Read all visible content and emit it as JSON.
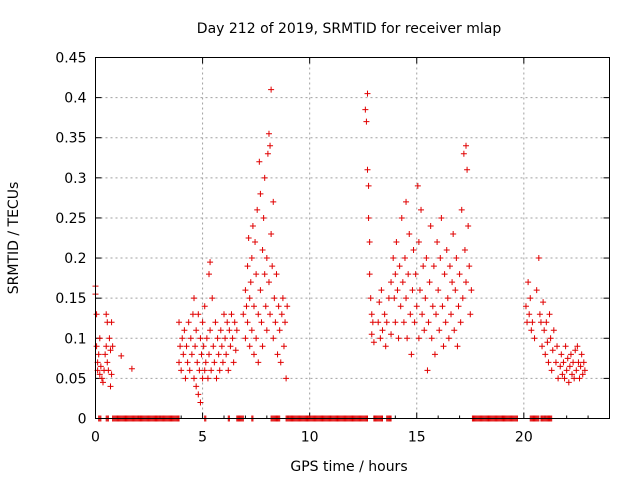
{
  "chart_data": {
    "type": "scatter",
    "title": "Day 212 of 2019, SRMTID for receiver mlap",
    "xlabel": "GPS time / hours",
    "ylabel": "SRMTID / TECUs",
    "xlim": [
      0,
      24
    ],
    "ylim": [
      0,
      0.45
    ],
    "xticks": [
      0,
      5,
      10,
      15,
      20
    ],
    "xtick_labels": [
      "0",
      "5",
      "10",
      "15",
      "20"
    ],
    "yticks": [
      0,
      0.05,
      0.1,
      0.15,
      0.2,
      0.25,
      0.3,
      0.35,
      0.4,
      0.45
    ],
    "ytick_labels": [
      "0",
      "0.05",
      "0.1",
      "0.15",
      "0.2",
      "0.25",
      "0.3",
      "0.35",
      "0.4",
      "0.45"
    ],
    "grid": true,
    "marker": "+",
    "marker_color": "#e00000",
    "series": [
      {
        "name": "SRMTID",
        "points": [
          [
            0.0,
            0.165
          ],
          [
            0.0,
            0.155
          ],
          [
            0.05,
            0.13
          ],
          [
            0.05,
            0.09
          ],
          [
            0.1,
            0.07
          ],
          [
            0.1,
            0.06
          ],
          [
            0.15,
            0.08
          ],
          [
            0.2,
            0.055
          ],
          [
            0.2,
            0.1
          ],
          [
            0.25,
            0.065
          ],
          [
            0.3,
            0.05
          ],
          [
            0.35,
            0.045
          ],
          [
            0.4,
            0.06
          ],
          [
            0.45,
            0.08
          ],
          [
            0.5,
            0.09
          ],
          [
            0.5,
            0.13
          ],
          [
            0.55,
            0.12
          ],
          [
            0.55,
            0.07
          ],
          [
            0.6,
            0.06
          ],
          [
            0.65,
            0.1
          ],
          [
            0.7,
            0.085
          ],
          [
            0.7,
            0.04
          ],
          [
            0.75,
            0.12
          ],
          [
            0.75,
            0.055
          ],
          [
            0.8,
            0.09
          ],
          [
            1.2,
            0.078
          ],
          [
            1.7,
            0.062
          ],
          [
            3.9,
            0.12
          ],
          [
            3.9,
            0.07
          ],
          [
            3.95,
            0.09
          ],
          [
            4.0,
            0.06
          ],
          [
            4.05,
            0.1
          ],
          [
            4.1,
            0.08
          ],
          [
            4.15,
            0.11
          ],
          [
            4.2,
            0.05
          ],
          [
            4.25,
            0.09
          ],
          [
            4.3,
            0.07
          ],
          [
            4.35,
            0.12
          ],
          [
            4.4,
            0.06
          ],
          [
            4.45,
            0.1
          ],
          [
            4.5,
            0.08
          ],
          [
            4.55,
            0.13
          ],
          [
            4.6,
            0.05
          ],
          [
            4.6,
            0.15
          ],
          [
            4.65,
            0.09
          ],
          [
            4.7,
            0.04
          ],
          [
            4.7,
            0.11
          ],
          [
            4.75,
            0.07
          ],
          [
            4.8,
            0.03
          ],
          [
            4.8,
            0.13
          ],
          [
            4.85,
            0.06
          ],
          [
            4.9,
            0.1
          ],
          [
            4.9,
            0.02
          ],
          [
            4.95,
            0.08
          ],
          [
            5.0,
            0.05
          ],
          [
            5.0,
            0.12
          ],
          [
            5.05,
            0.09
          ],
          [
            5.1,
            0.06
          ],
          [
            5.1,
            0.14
          ],
          [
            5.15,
            0.07
          ],
          [
            5.2,
            0.1
          ],
          [
            5.25,
            0.05
          ],
          [
            5.3,
            0.18
          ],
          [
            5.3,
            0.08
          ],
          [
            5.35,
            0.195
          ],
          [
            5.35,
            0.11
          ],
          [
            5.4,
            0.06
          ],
          [
            5.45,
            0.15
          ],
          [
            5.5,
            0.09
          ],
          [
            5.55,
            0.07
          ],
          [
            5.6,
            0.12
          ],
          [
            5.65,
            0.05
          ],
          [
            5.7,
            0.1
          ],
          [
            5.75,
            0.08
          ],
          [
            5.8,
            0.06
          ],
          [
            5.85,
            0.11
          ],
          [
            5.9,
            0.09
          ],
          [
            5.95,
            0.07
          ],
          [
            6.0,
            0.13
          ],
          [
            6.05,
            0.1
          ],
          [
            6.1,
            0.08
          ],
          [
            6.15,
            0.12
          ],
          [
            6.2,
            0.06
          ],
          [
            6.25,
            0.11
          ],
          [
            6.3,
            0.09
          ],
          [
            6.35,
            0.13
          ],
          [
            6.4,
            0.1
          ],
          [
            6.45,
            0.07
          ],
          [
            6.5,
            0.12
          ],
          [
            6.55,
            0.085
          ],
          [
            6.6,
            0.11
          ],
          [
            6.9,
            0.13
          ],
          [
            7.0,
            0.16
          ],
          [
            7.0,
            0.1
          ],
          [
            7.05,
            0.14
          ],
          [
            7.1,
            0.19
          ],
          [
            7.1,
            0.12
          ],
          [
            7.15,
            0.225
          ],
          [
            7.2,
            0.15
          ],
          [
            7.2,
            0.09
          ],
          [
            7.25,
            0.17
          ],
          [
            7.3,
            0.2
          ],
          [
            7.3,
            0.11
          ],
          [
            7.35,
            0.24
          ],
          [
            7.4,
            0.14
          ],
          [
            7.4,
            0.08
          ],
          [
            7.45,
            0.22
          ],
          [
            7.5,
            0.18
          ],
          [
            7.5,
            0.1
          ],
          [
            7.55,
            0.26
          ],
          [
            7.6,
            0.13
          ],
          [
            7.6,
            0.07
          ],
          [
            7.65,
            0.32
          ],
          [
            7.7,
            0.16
          ],
          [
            7.7,
            0.28
          ],
          [
            7.75,
            0.12
          ],
          [
            7.8,
            0.21
          ],
          [
            7.8,
            0.09
          ],
          [
            7.85,
            0.25
          ],
          [
            7.9,
            0.18
          ],
          [
            7.9,
            0.3
          ],
          [
            7.95,
            0.14
          ],
          [
            8.0,
            0.2
          ],
          [
            8.0,
            0.11
          ],
          [
            8.05,
            0.33
          ],
          [
            8.1,
            0.355
          ],
          [
            8.1,
            0.17
          ],
          [
            8.15,
            0.34
          ],
          [
            8.15,
            0.13
          ],
          [
            8.2,
            0.41
          ],
          [
            8.2,
            0.23
          ],
          [
            8.25,
            0.19
          ],
          [
            8.3,
            0.27
          ],
          [
            8.3,
            0.1
          ],
          [
            8.35,
            0.15
          ],
          [
            8.4,
            0.12
          ],
          [
            8.45,
            0.18
          ],
          [
            8.5,
            0.08
          ],
          [
            8.55,
            0.14
          ],
          [
            8.6,
            0.11
          ],
          [
            8.65,
            0.07
          ],
          [
            8.7,
            0.13
          ],
          [
            8.75,
            0.15
          ],
          [
            8.8,
            0.09
          ],
          [
            8.85,
            0.12
          ],
          [
            8.9,
            0.05
          ],
          [
            8.95,
            0.14
          ],
          [
            12.6,
            0.385
          ],
          [
            12.65,
            0.37
          ],
          [
            12.7,
            0.405
          ],
          [
            12.7,
            0.31
          ],
          [
            12.75,
            0.29
          ],
          [
            12.75,
            0.25
          ],
          [
            12.8,
            0.22
          ],
          [
            12.8,
            0.18
          ],
          [
            12.85,
            0.15
          ],
          [
            12.9,
            0.13
          ],
          [
            12.9,
            0.105
          ],
          [
            12.95,
            0.12
          ],
          [
            13.0,
            0.095
          ],
          [
            13.2,
            0.12
          ],
          [
            13.25,
            0.145
          ],
          [
            13.3,
            0.1
          ],
          [
            13.35,
            0.16
          ],
          [
            13.4,
            0.11
          ],
          [
            13.5,
            0.13
          ],
          [
            13.55,
            0.09
          ],
          [
            13.6,
            0.12
          ],
          [
            13.7,
            0.15
          ],
          [
            13.8,
            0.17
          ],
          [
            13.8,
            0.105
          ],
          [
            13.9,
            0.2
          ],
          [
            13.95,
            0.15
          ],
          [
            14.0,
            0.18
          ],
          [
            14.0,
            0.12
          ],
          [
            14.05,
            0.22
          ],
          [
            14.1,
            0.16
          ],
          [
            14.15,
            0.1
          ],
          [
            14.2,
            0.19
          ],
          [
            14.25,
            0.14
          ],
          [
            14.3,
            0.25
          ],
          [
            14.35,
            0.17
          ],
          [
            14.4,
            0.12
          ],
          [
            14.45,
            0.2
          ],
          [
            14.5,
            0.27
          ],
          [
            14.5,
            0.15
          ],
          [
            14.55,
            0.1
          ],
          [
            14.6,
            0.18
          ],
          [
            14.65,
            0.23
          ],
          [
            14.7,
            0.13
          ],
          [
            14.75,
            0.08
          ],
          [
            14.8,
            0.16
          ],
          [
            14.85,
            0.21
          ],
          [
            14.9,
            0.12
          ],
          [
            14.95,
            0.18
          ],
          [
            15.0,
            0.14
          ],
          [
            15.05,
            0.29
          ],
          [
            15.1,
            0.22
          ],
          [
            15.1,
            0.1
          ],
          [
            15.15,
            0.16
          ],
          [
            15.2,
            0.26
          ],
          [
            15.25,
            0.13
          ],
          [
            15.3,
            0.19
          ],
          [
            15.35,
            0.11
          ],
          [
            15.4,
            0.15
          ],
          [
            15.45,
            0.2
          ],
          [
            15.5,
            0.06
          ],
          [
            15.55,
            0.12
          ],
          [
            15.6,
            0.17
          ],
          [
            15.65,
            0.24
          ],
          [
            15.7,
            0.1
          ],
          [
            15.75,
            0.14
          ],
          [
            15.8,
            0.19
          ],
          [
            15.85,
            0.08
          ],
          [
            15.9,
            0.13
          ],
          [
            15.95,
            0.22
          ],
          [
            16.0,
            0.16
          ],
          [
            16.05,
            0.11
          ],
          [
            16.1,
            0.2
          ],
          [
            16.15,
            0.25
          ],
          [
            16.2,
            0.14
          ],
          [
            16.25,
            0.09
          ],
          [
            16.3,
            0.18
          ],
          [
            16.35,
            0.12
          ],
          [
            16.4,
            0.21
          ],
          [
            16.45,
            0.15
          ],
          [
            16.5,
            0.1
          ],
          [
            16.55,
            0.19
          ],
          [
            16.6,
            0.13
          ],
          [
            16.65,
            0.17
          ],
          [
            16.7,
            0.23
          ],
          [
            16.75,
            0.11
          ],
          [
            16.8,
            0.16
          ],
          [
            16.85,
            0.2
          ],
          [
            16.9,
            0.09
          ],
          [
            16.95,
            0.14
          ],
          [
            17.0,
            0.18
          ],
          [
            17.05,
            0.12
          ],
          [
            17.1,
            0.26
          ],
          [
            17.15,
            0.15
          ],
          [
            17.2,
            0.33
          ],
          [
            17.25,
            0.21
          ],
          [
            17.3,
            0.34
          ],
          [
            17.3,
            0.17
          ],
          [
            17.35,
            0.31
          ],
          [
            17.4,
            0.24
          ],
          [
            17.45,
            0.19
          ],
          [
            17.5,
            0.13
          ],
          [
            17.55,
            0.16
          ],
          [
            20.1,
            0.14
          ],
          [
            20.15,
            0.12
          ],
          [
            20.2,
            0.17
          ],
          [
            20.25,
            0.13
          ],
          [
            20.3,
            0.15
          ],
          [
            20.35,
            0.11
          ],
          [
            20.4,
            0.12
          ],
          [
            20.5,
            0.1
          ],
          [
            20.6,
            0.16
          ],
          [
            20.7,
            0.2
          ],
          [
            20.75,
            0.13
          ],
          [
            20.8,
            0.12
          ],
          [
            20.85,
            0.09
          ],
          [
            20.9,
            0.145
          ],
          [
            20.95,
            0.11
          ],
          [
            21.0,
            0.08
          ],
          [
            21.05,
            0.12
          ],
          [
            21.1,
            0.095
          ],
          [
            21.15,
            0.07
          ],
          [
            21.2,
            0.13
          ],
          [
            21.25,
            0.1
          ],
          [
            21.3,
            0.06
          ],
          [
            21.35,
            0.085
          ],
          [
            21.4,
            0.11
          ],
          [
            21.5,
            0.07
          ],
          [
            21.55,
            0.09
          ],
          [
            21.6,
            0.05
          ],
          [
            21.7,
            0.065
          ],
          [
            21.75,
            0.08
          ],
          [
            21.8,
            0.055
          ],
          [
            21.85,
            0.07
          ],
          [
            21.9,
            0.05
          ],
          [
            21.95,
            0.09
          ],
          [
            22.0,
            0.06
          ],
          [
            22.05,
            0.075
          ],
          [
            22.1,
            0.045
          ],
          [
            22.15,
            0.065
          ],
          [
            22.2,
            0.08
          ],
          [
            22.25,
            0.055
          ],
          [
            22.3,
            0.07
          ],
          [
            22.35,
            0.05
          ],
          [
            22.4,
            0.085
          ],
          [
            22.45,
            0.06
          ],
          [
            22.5,
            0.09
          ],
          [
            22.55,
            0.07
          ],
          [
            22.6,
            0.05
          ],
          [
            22.65,
            0.065
          ],
          [
            22.7,
            0.08
          ],
          [
            22.75,
            0.055
          ],
          [
            22.8,
            0.07
          ],
          [
            22.85,
            0.06
          ]
        ],
        "zero_spans": [
          [
            0.15,
            0.25
          ],
          [
            0.5,
            0.6
          ],
          [
            0.8,
            3.9
          ],
          [
            5.1,
            5.15
          ],
          [
            6.2,
            6.25
          ],
          [
            6.6,
            6.9
          ],
          [
            7.3,
            7.35
          ],
          [
            8.2,
            8.6
          ],
          [
            8.9,
            12.7
          ],
          [
            13.0,
            13.4
          ],
          [
            13.6,
            13.8
          ],
          [
            17.6,
            19.7
          ],
          [
            20.3,
            20.7
          ],
          [
            20.8,
            21.3
          ]
        ]
      }
    ]
  }
}
